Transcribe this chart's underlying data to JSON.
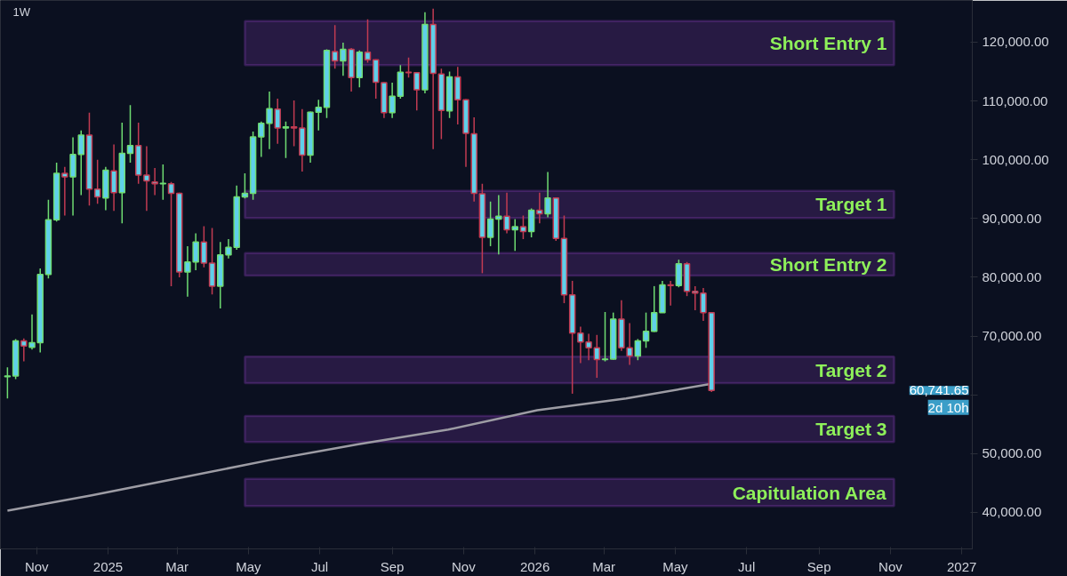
{
  "chart_data": {
    "type": "candlestick",
    "subtitle": "1W",
    "x": [
      "2024-10-07",
      "2024-10-14",
      "2024-10-21",
      "2024-10-28",
      "2024-11-04",
      "2024-11-11",
      "2024-11-18",
      "2024-11-25",
      "2024-12-02",
      "2024-12-09",
      "2024-12-16",
      "2024-12-23",
      "2024-12-30",
      "2025-01-06",
      "2025-01-13",
      "2025-01-20",
      "2025-01-27",
      "2025-02-03",
      "2025-02-10",
      "2025-02-17",
      "2025-02-24",
      "2025-03-03",
      "2025-03-10",
      "2025-03-17",
      "2025-03-24",
      "2025-03-31",
      "2025-04-07",
      "2025-04-14",
      "2025-04-21",
      "2025-04-28",
      "2025-05-05",
      "2025-05-12",
      "2025-05-19",
      "2025-05-26",
      "2025-06-02",
      "2025-06-09",
      "2025-06-16",
      "2025-06-23",
      "2025-06-30",
      "2025-07-07",
      "2025-07-14",
      "2025-07-21",
      "2025-07-28",
      "2025-08-04",
      "2025-08-11",
      "2025-08-18",
      "2025-08-25",
      "2025-09-01",
      "2025-09-08",
      "2025-09-15",
      "2025-09-22",
      "2025-09-29",
      "2025-10-06",
      "2025-10-13",
      "2025-10-20",
      "2025-10-27",
      "2025-11-03",
      "2025-11-10",
      "2025-11-17",
      "2025-11-24",
      "2025-12-01",
      "2025-12-08",
      "2025-12-15",
      "2025-12-22",
      "2025-12-29",
      "2026-01-05",
      "2026-01-12",
      "2026-01-19",
      "2026-01-26",
      "2026-02-02",
      "2026-02-09",
      "2026-02-16",
      "2026-02-23",
      "2026-03-02",
      "2026-03-09",
      "2026-03-16",
      "2026-03-23",
      "2026-03-30",
      "2026-04-06",
      "2026-04-13",
      "2026-04-20",
      "2026-04-27",
      "2026-05-04",
      "2026-05-11",
      "2026-05-18",
      "2026-05-25",
      "2026-06-01"
    ],
    "ohlc": [
      [
        63100,
        64700,
        59400,
        63200
      ],
      [
        63200,
        69500,
        62700,
        69200
      ],
      [
        69200,
        69600,
        65700,
        68300
      ],
      [
        68100,
        73700,
        67700,
        68900
      ],
      [
        68900,
        81500,
        67200,
        80500
      ],
      [
        80500,
        93200,
        79800,
        89800
      ],
      [
        89800,
        99500,
        89500,
        97700
      ],
      [
        97700,
        98800,
        90500,
        97100
      ],
      [
        97100,
        103800,
        90500,
        100900
      ],
      [
        100900,
        105000,
        94000,
        104200
      ],
      [
        104200,
        108000,
        92200,
        95000
      ],
      [
        95000,
        100000,
        92500,
        93700
      ],
      [
        93500,
        98800,
        91400,
        98200
      ],
      [
        98100,
        102600,
        91300,
        94400
      ],
      [
        94400,
        106300,
        89200,
        101100
      ],
      [
        101100,
        109300,
        99500,
        102400
      ],
      [
        102400,
        106300,
        95900,
        97400
      ],
      [
        97400,
        102300,
        91300,
        96400
      ],
      [
        96200,
        98600,
        94000,
        95900
      ],
      [
        95900,
        99200,
        93200,
        96000
      ],
      [
        95900,
        96200,
        78500,
        94300
      ],
      [
        94300,
        94400,
        80000,
        80900
      ],
      [
        80900,
        85300,
        76700,
        82600
      ],
      [
        82600,
        87500,
        81200,
        86000
      ],
      [
        86000,
        88700,
        81700,
        82400
      ],
      [
        82400,
        88400,
        77100,
        78500
      ],
      [
        78500,
        86000,
        74700,
        83800
      ],
      [
        83800,
        86500,
        83200,
        85100
      ],
      [
        85100,
        95600,
        84700,
        93700
      ],
      [
        93700,
        97700,
        93400,
        94300
      ],
      [
        94300,
        104800,
        93200,
        103900
      ],
      [
        103900,
        106500,
        100500,
        106200
      ],
      [
        106200,
        111600,
        101800,
        108700
      ],
      [
        108600,
        110400,
        102700,
        105400
      ],
      [
        105400,
        106500,
        100300,
        105600
      ],
      [
        105600,
        110100,
        102300,
        105400
      ],
      [
        105400,
        108600,
        98000,
        100800
      ],
      [
        100800,
        108200,
        99500,
        108100
      ],
      [
        108100,
        110200,
        105000,
        108900
      ],
      [
        108900,
        118800,
        107100,
        118600
      ],
      [
        118400,
        122900,
        115500,
        116800
      ],
      [
        116800,
        119900,
        114300,
        118800
      ],
      [
        118800,
        119000,
        111600,
        114000
      ],
      [
        114000,
        118600,
        112300,
        118300
      ],
      [
        118300,
        123900,
        116500,
        117000
      ],
      [
        117000,
        117100,
        110400,
        113200
      ],
      [
        113100,
        113200,
        107100,
        108000
      ],
      [
        108000,
        113100,
        107100,
        110800
      ],
      [
        110800,
        116100,
        110400,
        114900
      ],
      [
        114900,
        117400,
        114000,
        114800
      ],
      [
        114800,
        114800,
        108400,
        111900
      ],
      [
        111900,
        125100,
        111300,
        123000
      ],
      [
        123000,
        125700,
        101800,
        114700
      ],
      [
        114600,
        115500,
        103500,
        108400
      ],
      [
        108300,
        115000,
        107100,
        114100
      ],
      [
        114100,
        115800,
        106000,
        110200
      ],
      [
        110200,
        110300,
        98800,
        104500
      ],
      [
        104400,
        107200,
        92900,
        94300
      ],
      [
        94200,
        95900,
        80700,
        86800
      ],
      [
        86800,
        92900,
        85300,
        89900
      ],
      [
        89900,
        94000,
        83900,
        90400
      ],
      [
        90400,
        94400,
        87500,
        88100
      ],
      [
        88100,
        89900,
        84500,
        88600
      ],
      [
        88600,
        90500,
        86500,
        87800
      ],
      [
        87800,
        91700,
        86800,
        91400
      ],
      [
        91400,
        94400,
        89200,
        90800
      ],
      [
        90800,
        97900,
        90200,
        93500
      ],
      [
        93500,
        93600,
        86200,
        86600
      ],
      [
        86600,
        90500,
        75600,
        77000
      ],
      [
        77000,
        79400,
        60200,
        70500
      ],
      [
        70500,
        71600,
        65400,
        69000
      ],
      [
        69000,
        70400,
        65900,
        68000
      ],
      [
        68000,
        70200,
        62900,
        66000
      ],
      [
        66000,
        74100,
        65700,
        66100
      ],
      [
        66100,
        74000,
        66000,
        72900
      ],
      [
        72900,
        76100,
        67500,
        68000
      ],
      [
        68000,
        72200,
        65100,
        66600
      ],
      [
        66600,
        69500,
        65900,
        69200
      ],
      [
        69200,
        74000,
        68000,
        70800
      ],
      [
        70800,
        78500,
        70700,
        74000
      ],
      [
        74000,
        79400,
        74000,
        78700
      ],
      [
        78700,
        79400,
        75200,
        78600
      ],
      [
        78600,
        83000,
        78300,
        82300
      ],
      [
        82300,
        82600,
        76800,
        77600
      ],
      [
        77600,
        78500,
        74400,
        77300
      ],
      [
        77300,
        78200,
        72600,
        74000
      ],
      [
        74000,
        74100,
        60500,
        60741.65
      ]
    ],
    "color": "#5fd0ea",
    "colors": [
      "#6fdc72",
      "#6fdc72",
      "#c23b52",
      "#6fdc72",
      "#6fdc72",
      "#6fdc72",
      "#6fdc72",
      "#c23b52",
      "#6fdc72",
      "#6fdc72",
      "#c23b52",
      "#c23b52",
      "#6fdc72",
      "#c23b52",
      "#6fdc72",
      "#6fdc72",
      "#c23b52",
      "#c23b52",
      "#c23b52",
      "#6fdc72",
      "#c23b52",
      "#c23b52",
      "#6fdc72",
      "#6fdc72",
      "#c23b52",
      "#c23b52",
      "#6fdc72",
      "#6fdc72",
      "#6fdc72",
      "#6fdc72",
      "#6fdc72",
      "#6fdc72",
      "#6fdc72",
      "#c23b52",
      "#6fdc72",
      "#c23b52",
      "#c23b52",
      "#6fdc72",
      "#6fdc72",
      "#6fdc72",
      "#c23b52",
      "#6fdc72",
      "#c23b52",
      "#6fdc72",
      "#c23b52",
      "#c23b52",
      "#c23b52",
      "#6fdc72",
      "#6fdc72",
      "#c23b52",
      "#c23b52",
      "#6fdc72",
      "#c23b52",
      "#c23b52",
      "#6fdc72",
      "#c23b52",
      "#c23b52",
      "#c23b52",
      "#c23b52",
      "#6fdc72",
      "#6fdc72",
      "#c23b52",
      "#6fdc72",
      "#c23b52",
      "#6fdc72",
      "#c23b52",
      "#6fdc72",
      "#c23b52",
      "#c23b52",
      "#c23b52",
      "#c23b52",
      "#c23b52",
      "#c23b52",
      "#6fdc72",
      "#6fdc72",
      "#c23b52",
      "#c23b52",
      "#6fdc72",
      "#6fdc72",
      "#6fdc72",
      "#6fdc72",
      "#c23b52",
      "#6fdc72",
      "#c23b52",
      "#c23b52",
      "#c23b52",
      "#c23b52"
    ],
    "series": [
      {
        "type": "line",
        "color": "#9d9ca4",
        "x": [
          "2024-10-07",
          "2024-12-18",
          "2025-03-04",
          "2025-05-19",
          "2025-08-03",
          "2025-10-19",
          "2026-01-03",
          "2026-03-20",
          "2026-06-01"
        ],
        "values": [
          40300,
          42900,
          45900,
          48900,
          51600,
          54100,
          57400,
          59400,
          61900
        ]
      }
    ],
    "bands": [
      {
        "axis": "y",
        "from": 116100,
        "to": 123600,
        "label": "Short Entry 1",
        "color": "#8e3fbf"
      },
      {
        "axis": "y",
        "from": 90100,
        "to": 94700,
        "label": "Target 1",
        "color": "#8e3fbf"
      },
      {
        "axis": "y",
        "from": 80300,
        "to": 84100,
        "label": "Short Entry 2",
        "color": "#8e3fbf"
      },
      {
        "axis": "y",
        "from": 62000,
        "to": 66500,
        "label": "Target 2",
        "color": "#8e3fbf"
      },
      {
        "axis": "y",
        "from": 52000,
        "to": 56400,
        "label": "Target 3",
        "color": "#8e3fbf"
      },
      {
        "axis": "y",
        "from": 41100,
        "to": 45700,
        "label": "Capitulation Area",
        "color": "#8e3fbf"
      }
    ],
    "annotations": [
      "60,741.65",
      "2d 10h"
    ],
    "xlim": [
      "2024-10-01",
      "2027-01-10"
    ],
    "xticks": [
      {
        "value": "2024-11-01",
        "label": "Nov"
      },
      {
        "value": "2025-01-01",
        "label": "2025"
      },
      {
        "value": "2025-03-01",
        "label": "Mar"
      },
      {
        "value": "2025-05-01",
        "label": "May"
      },
      {
        "value": "2025-07-01",
        "label": "Jul"
      },
      {
        "value": "2025-09-01",
        "label": "Sep"
      },
      {
        "value": "2025-11-01",
        "label": "Nov"
      },
      {
        "value": "2026-01-01",
        "label": "2026"
      },
      {
        "value": "2026-03-01",
        "label": "Mar"
      },
      {
        "value": "2026-05-01",
        "label": "May"
      },
      {
        "value": "2026-07-01",
        "label": "Jul"
      },
      {
        "value": "2026-09-01",
        "label": "Sep"
      },
      {
        "value": "2026-11-01",
        "label": "Nov"
      },
      {
        "value": "2027-01-01",
        "label": "2027"
      }
    ],
    "ylim": [
      33800,
      127100
    ],
    "yticks": [
      {
        "value": 40000,
        "label": "40,000.00"
      },
      {
        "value": 50000,
        "label": "50,000.00"
      },
      {
        "value": 60000,
        "label": null
      },
      {
        "value": 70000,
        "label": "70,000.00"
      },
      {
        "value": 80000,
        "label": "80,000.00"
      },
      {
        "value": 90000,
        "label": "90,000.00"
      },
      {
        "value": 100000,
        "label": "100,000.00"
      },
      {
        "value": 110000,
        "label": "110,000.00"
      },
      {
        "value": 120000,
        "label": "120,000.00"
      }
    ],
    "marker": "none",
    "line_style": "solid"
  }
}
